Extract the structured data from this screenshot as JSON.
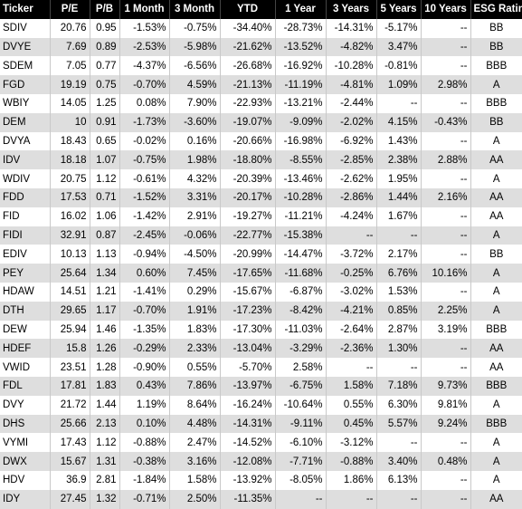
{
  "table": {
    "headers": [
      "Ticker",
      "P/E",
      "P/B",
      "1 Month",
      "3 Month",
      "YTD",
      "1 Year",
      "3 Years",
      "5 Years",
      "10 Years",
      "ESG Rating"
    ],
    "rows": [
      [
        "SDIV",
        "20.76",
        "0.95",
        "-1.53%",
        "-0.75%",
        "-34.40%",
        "-28.73%",
        "-14.31%",
        "-5.17%",
        "--",
        "BB"
      ],
      [
        "DVYE",
        "7.69",
        "0.89",
        "-2.53%",
        "-5.98%",
        "-21.62%",
        "-13.52%",
        "-4.82%",
        "3.47%",
        "--",
        "BB"
      ],
      [
        "SDEM",
        "7.05",
        "0.77",
        "-4.37%",
        "-6.56%",
        "-26.68%",
        "-16.92%",
        "-10.28%",
        "-0.81%",
        "--",
        "BBB"
      ],
      [
        "FGD",
        "19.19",
        "0.75",
        "-0.70%",
        "4.59%",
        "-21.13%",
        "-11.19%",
        "-4.81%",
        "1.09%",
        "2.98%",
        "A"
      ],
      [
        "WBIY",
        "14.05",
        "1.25",
        "0.08%",
        "7.90%",
        "-22.93%",
        "-13.21%",
        "-2.44%",
        "--",
        "--",
        "BBB"
      ],
      [
        "DEM",
        "10",
        "0.91",
        "-1.73%",
        "-3.60%",
        "-19.07%",
        "-9.09%",
        "-2.02%",
        "4.15%",
        "-0.43%",
        "BB"
      ],
      [
        "DVYA",
        "18.43",
        "0.65",
        "-0.02%",
        "0.16%",
        "-20.66%",
        "-16.98%",
        "-6.92%",
        "1.43%",
        "--",
        "A"
      ],
      [
        "IDV",
        "18.18",
        "1.07",
        "-0.75%",
        "1.98%",
        "-18.80%",
        "-8.55%",
        "-2.85%",
        "2.38%",
        "2.88%",
        "AA"
      ],
      [
        "WDIV",
        "20.75",
        "1.12",
        "-0.61%",
        "4.32%",
        "-20.39%",
        "-13.46%",
        "-2.62%",
        "1.95%",
        "--",
        "A"
      ],
      [
        "FDD",
        "17.53",
        "0.71",
        "-1.52%",
        "3.31%",
        "-20.17%",
        "-10.28%",
        "-2.86%",
        "1.44%",
        "2.16%",
        "AA"
      ],
      [
        "FID",
        "16.02",
        "1.06",
        "-1.42%",
        "2.91%",
        "-19.27%",
        "-11.21%",
        "-4.24%",
        "1.67%",
        "--",
        "AA"
      ],
      [
        "FIDI",
        "32.91",
        "0.87",
        "-2.45%",
        "-0.06%",
        "-22.77%",
        "-15.38%",
        "--",
        "--",
        "--",
        "A"
      ],
      [
        "EDIV",
        "10.13",
        "1.13",
        "-0.94%",
        "-4.50%",
        "-20.99%",
        "-14.47%",
        "-3.72%",
        "2.17%",
        "--",
        "BB"
      ],
      [
        "PEY",
        "25.64",
        "1.34",
        "0.60%",
        "7.45%",
        "-17.65%",
        "-11.68%",
        "-0.25%",
        "6.76%",
        "10.16%",
        "A"
      ],
      [
        "HDAW",
        "14.51",
        "1.21",
        "-1.41%",
        "0.29%",
        "-15.67%",
        "-6.87%",
        "-3.02%",
        "1.53%",
        "--",
        "A"
      ],
      [
        "DTH",
        "29.65",
        "1.17",
        "-0.70%",
        "1.91%",
        "-17.23%",
        "-8.42%",
        "-4.21%",
        "0.85%",
        "2.25%",
        "A"
      ],
      [
        "DEW",
        "25.94",
        "1.46",
        "-1.35%",
        "1.83%",
        "-17.30%",
        "-11.03%",
        "-2.64%",
        "2.87%",
        "3.19%",
        "BBB"
      ],
      [
        "HDEF",
        "15.8",
        "1.26",
        "-0.29%",
        "2.33%",
        "-13.04%",
        "-3.29%",
        "-2.36%",
        "1.30%",
        "--",
        "AA"
      ],
      [
        "VWID",
        "23.51",
        "1.28",
        "-0.90%",
        "0.55%",
        "-5.70%",
        "2.58%",
        "--",
        "--",
        "--",
        "AA"
      ],
      [
        "FDL",
        "17.81",
        "1.83",
        "0.43%",
        "7.86%",
        "-13.97%",
        "-6.75%",
        "1.58%",
        "7.18%",
        "9.73%",
        "BBB"
      ],
      [
        "DVY",
        "21.72",
        "1.44",
        "1.19%",
        "8.64%",
        "-16.24%",
        "-10.64%",
        "0.55%",
        "6.30%",
        "9.81%",
        "A"
      ],
      [
        "DHS",
        "25.66",
        "2.13",
        "0.10%",
        "4.48%",
        "-14.31%",
        "-9.11%",
        "0.45%",
        "5.57%",
        "9.24%",
        "BBB"
      ],
      [
        "VYMI",
        "17.43",
        "1.12",
        "-0.88%",
        "2.47%",
        "-14.52%",
        "-6.10%",
        "-3.12%",
        "--",
        "--",
        "A"
      ],
      [
        "DWX",
        "15.67",
        "1.31",
        "-0.38%",
        "3.16%",
        "-12.08%",
        "-7.71%",
        "-0.88%",
        "3.40%",
        "0.48%",
        "A"
      ],
      [
        "HDV",
        "36.9",
        "2.81",
        "-1.84%",
        "1.58%",
        "-13.92%",
        "-8.05%",
        "1.86%",
        "6.13%",
        "--",
        "A"
      ],
      [
        "IDY",
        "27.45",
        "1.32",
        "-0.71%",
        "2.50%",
        "-11.35%",
        "--",
        "--",
        "--",
        "--",
        "AA"
      ]
    ]
  }
}
